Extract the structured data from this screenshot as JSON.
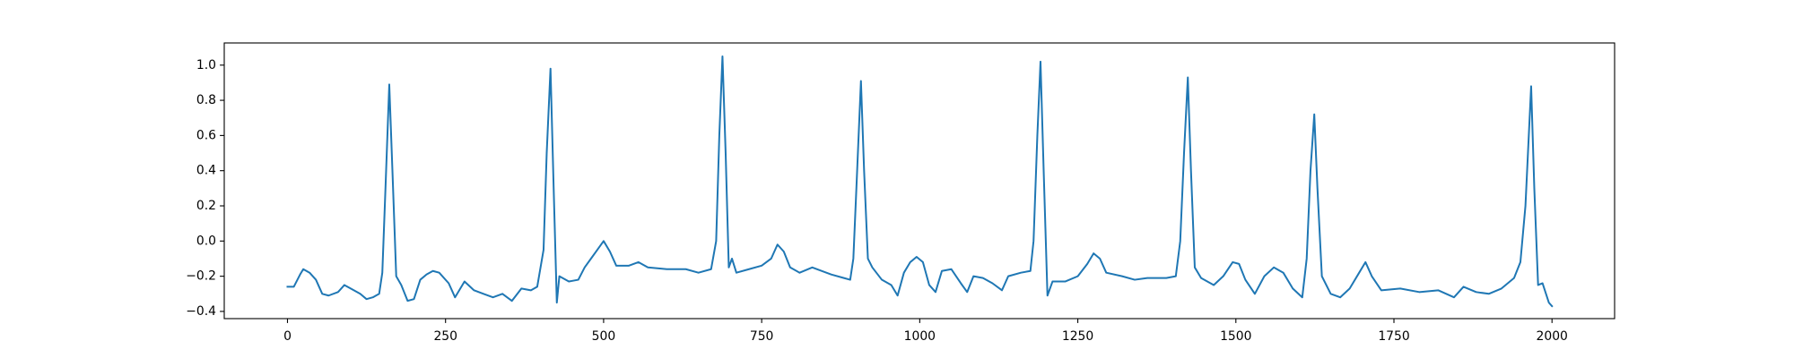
{
  "chart_data": {
    "type": "line",
    "x": [
      0,
      10,
      20,
      25,
      35,
      45,
      55,
      65,
      80,
      90,
      100,
      115,
      125,
      135,
      145,
      150,
      155,
      161,
      166,
      172,
      180,
      190,
      200,
      210,
      220,
      230,
      240,
      255,
      265,
      280,
      295,
      310,
      325,
      340,
      355,
      370,
      385,
      395,
      405,
      410,
      416,
      421,
      426,
      430,
      445,
      460,
      470,
      480,
      490,
      500,
      510,
      520,
      540,
      555,
      570,
      600,
      630,
      650,
      670,
      678,
      683,
      688,
      693,
      698,
      703,
      710,
      730,
      750,
      765,
      775,
      785,
      795,
      810,
      830,
      860,
      880,
      890,
      895,
      901,
      907,
      912,
      918,
      925,
      940,
      955,
      965,
      975,
      985,
      995,
      1005,
      1015,
      1025,
      1035,
      1050,
      1065,
      1075,
      1085,
      1100,
      1115,
      1130,
      1140,
      1160,
      1175,
      1180,
      1186,
      1191,
      1196,
      1202,
      1210,
      1230,
      1250,
      1265,
      1275,
      1285,
      1295,
      1320,
      1340,
      1360,
      1390,
      1405,
      1412,
      1418,
      1424,
      1429,
      1435,
      1445,
      1465,
      1480,
      1495,
      1505,
      1515,
      1530,
      1545,
      1560,
      1575,
      1590,
      1605,
      1612,
      1618,
      1624,
      1629,
      1636,
      1650,
      1665,
      1680,
      1695,
      1705,
      1715,
      1730,
      1760,
      1790,
      1820,
      1845,
      1860,
      1880,
      1900,
      1920,
      1940,
      1950,
      1958,
      1967,
      1972,
      1978,
      1985,
      1995,
      2000
    ],
    "series": [
      {
        "color": "#1f77b4",
        "values": [
          -0.26,
          -0.26,
          -0.19,
          -0.16,
          -0.18,
          -0.22,
          -0.3,
          -0.31,
          -0.29,
          -0.25,
          -0.27,
          -0.3,
          -0.33,
          -0.32,
          -0.3,
          -0.18,
          0.3,
          0.89,
          0.4,
          -0.2,
          -0.25,
          -0.34,
          -0.33,
          -0.22,
          -0.19,
          -0.17,
          -0.18,
          -0.24,
          -0.32,
          -0.23,
          -0.28,
          -0.3,
          -0.32,
          -0.3,
          -0.34,
          -0.27,
          -0.28,
          -0.26,
          -0.05,
          0.5,
          0.98,
          0.3,
          -0.35,
          -0.2,
          -0.23,
          -0.22,
          -0.15,
          -0.1,
          -0.05,
          0.0,
          -0.06,
          -0.14,
          -0.14,
          -0.12,
          -0.15,
          -0.16,
          -0.16,
          -0.18,
          -0.16,
          0.0,
          0.6,
          1.05,
          0.5,
          -0.15,
          -0.1,
          -0.18,
          -0.16,
          -0.14,
          -0.1,
          -0.02,
          -0.06,
          -0.15,
          -0.18,
          -0.15,
          -0.19,
          -0.21,
          -0.22,
          -0.1,
          0.4,
          0.91,
          0.4,
          -0.1,
          -0.15,
          -0.22,
          -0.25,
          -0.31,
          -0.18,
          -0.12,
          -0.09,
          -0.12,
          -0.25,
          -0.29,
          -0.17,
          -0.16,
          -0.24,
          -0.29,
          -0.2,
          -0.21,
          -0.24,
          -0.28,
          -0.2,
          -0.18,
          -0.17,
          0.0,
          0.6,
          1.02,
          0.4,
          -0.31,
          -0.23,
          -0.23,
          -0.2,
          -0.13,
          -0.07,
          -0.1,
          -0.18,
          -0.2,
          -0.22,
          -0.21,
          -0.21,
          -0.2,
          0.0,
          0.5,
          0.93,
          0.4,
          -0.15,
          -0.21,
          -0.25,
          -0.2,
          -0.12,
          -0.13,
          -0.22,
          -0.3,
          -0.2,
          -0.15,
          -0.18,
          -0.27,
          -0.32,
          -0.1,
          0.4,
          0.72,
          0.3,
          -0.2,
          -0.3,
          -0.32,
          -0.27,
          -0.18,
          -0.12,
          -0.2,
          -0.28,
          -0.27,
          -0.29,
          -0.28,
          -0.32,
          -0.26,
          -0.29,
          -0.3,
          -0.27,
          -0.21,
          -0.12,
          0.2,
          0.88,
          0.3,
          -0.25,
          -0.24,
          -0.35,
          -0.37
        ]
      }
    ],
    "xlim": [
      -100,
      2099
    ],
    "ylim": [
      -0.441,
      1.126
    ],
    "xticks": [
      0,
      250,
      500,
      750,
      1000,
      1250,
      1500,
      1750,
      2000
    ],
    "yticks": [
      {
        "value": -0.4,
        "label": "−0.4"
      },
      {
        "value": -0.2,
        "label": "−0.2"
      },
      {
        "value": 0.0,
        "label": "0.0"
      },
      {
        "value": 0.2,
        "label": "0.2"
      },
      {
        "value": 0.4,
        "label": "0.4"
      },
      {
        "value": 0.6,
        "label": "0.6"
      },
      {
        "value": 0.8,
        "label": "0.8"
      },
      {
        "value": 1.0,
        "label": "1.0"
      }
    ]
  }
}
